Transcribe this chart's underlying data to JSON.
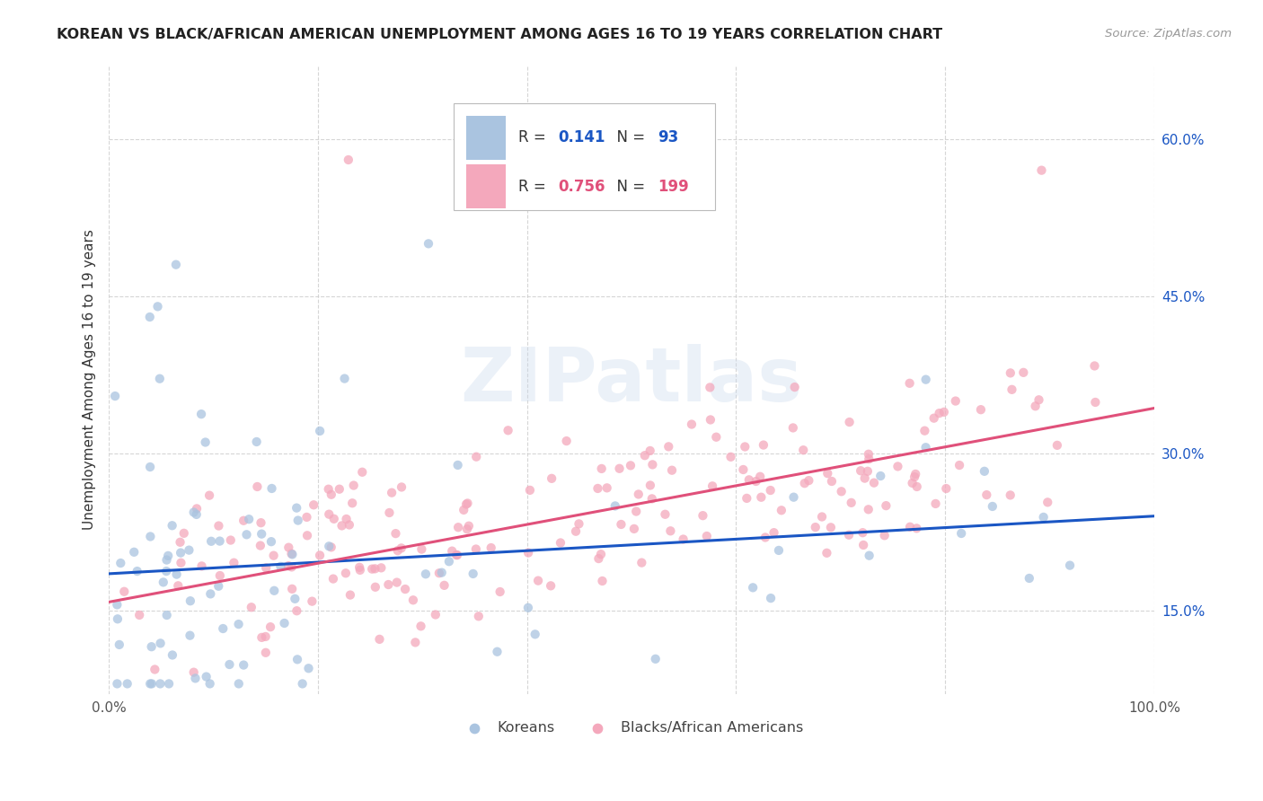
{
  "title": "KOREAN VS BLACK/AFRICAN AMERICAN UNEMPLOYMENT AMONG AGES 16 TO 19 YEARS CORRELATION CHART",
  "source": "Source: ZipAtlas.com",
  "ylabel": "Unemployment Among Ages 16 to 19 years",
  "xlim": [
    0.0,
    1.0
  ],
  "ylim": [
    0.07,
    0.67
  ],
  "xticks": [
    0.0,
    0.2,
    0.4,
    0.6,
    0.8,
    1.0
  ],
  "xticklabels": [
    "0.0%",
    "",
    "",
    "",
    "",
    "100.0%"
  ],
  "ytick_positions": [
    0.15,
    0.3,
    0.45,
    0.6
  ],
  "yticklabels": [
    "15.0%",
    "30.0%",
    "45.0%",
    "60.0%"
  ],
  "legend_R_korean": "0.141",
  "legend_N_korean": "93",
  "legend_R_black": "0.756",
  "legend_N_black": "199",
  "korean_color": "#aac4e0",
  "black_color": "#f4a8bc",
  "korean_line_color": "#1a56c4",
  "black_line_color": "#e0507a",
  "watermark": "ZIPatlas",
  "background_color": "#ffffff",
  "grid_color": "#cccccc",
  "scatter_alpha": 0.75,
  "scatter_size": 55,
  "korean_reg_slope": 0.055,
  "korean_reg_intercept": 0.185,
  "black_reg_slope": 0.185,
  "black_reg_intercept": 0.158
}
